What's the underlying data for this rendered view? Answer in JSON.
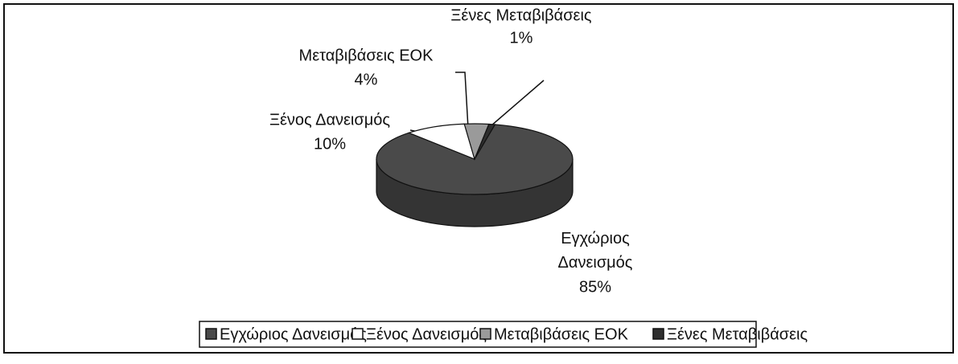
{
  "chart_data": {
    "type": "pie",
    "categories": [
      "Εγχώριος Δανεισμός",
      "Ξένος Δανεισμός",
      "Μεταβιβάσεις ΕΟΚ",
      "Ξένες Μεταβιβάσεις"
    ],
    "values": [
      85,
      10,
      4,
      1
    ],
    "value_labels": [
      "85%",
      "10%",
      "4%",
      "1%"
    ],
    "colors": [
      "#4a4a4a",
      "#ffffff",
      "#9a9a9a",
      "#2e2e2e"
    ],
    "legend": "bottom"
  }
}
